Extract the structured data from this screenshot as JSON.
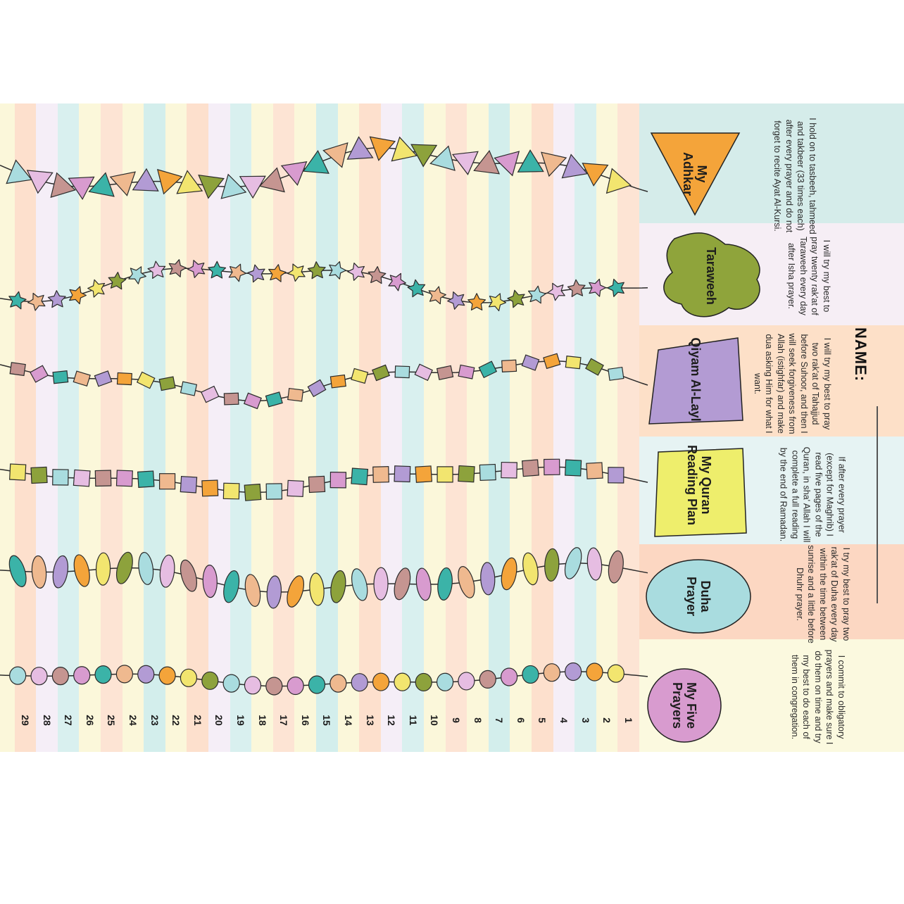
{
  "name_label": "NAME:",
  "days": [
    "1",
    "2",
    "3",
    "4",
    "5",
    "6",
    "7",
    "8",
    "9",
    "10",
    "11",
    "12",
    "13",
    "14",
    "15",
    "16",
    "17",
    "18",
    "19",
    "20",
    "21",
    "22",
    "23",
    "24",
    "25",
    "26",
    "27",
    "28",
    "29"
  ],
  "rows": [
    {
      "id": "adhkar",
      "label": "My Adhkar",
      "description": "I hold on to tasbeeh, tahmeed and takbeer (33 times each) after every prayer and do not forget to recite Ayat Al-Kursi.",
      "badge_color": "#f4a43a",
      "panel_color": "#d5ecea",
      "bead": "triangle"
    },
    {
      "id": "taraweeh",
      "label": "Taraweeh",
      "description": "I will try my best to pray twenty rak'at of Taraweeh every day after Isha prayer.",
      "badge_color": "#8fa43b",
      "panel_color": "#f6eef5",
      "bead": "star"
    },
    {
      "id": "qiyam",
      "label": "Qiyam Al-Layl",
      "description": "I will try my best to pray two rak'at of Tahajjud before Suhoor, and then I will seek forgiveness from Allah (istighfar) and make dua asking Him for what I want.",
      "badge_color": "#b39bd3",
      "panel_color": "#fde0c8",
      "bead": "diamond"
    },
    {
      "id": "quran",
      "label": "My Quran Reading Plan",
      "description": "If after every prayer (except for Maghrib) I read five pages of the Quran, in sha' Allah I will complete a full reading by the end of Ramadan.",
      "badge_color": "#eeee6c",
      "panel_color": "#e6f3f3",
      "bead": "square"
    },
    {
      "id": "duha",
      "label": "Duha Prayer",
      "description": "I try my best to pray two rak'at of Duha every day within the time between sunrise and a little before Dhuhr prayer.",
      "badge_color": "#a9dcdf",
      "panel_color": "#fcd7c2",
      "bead": "oval"
    },
    {
      "id": "five",
      "label": "My Five Prayers",
      "description": "I commit to obligatory prayers and make sure I do them on time and try my best to do each of them in congregation.",
      "badge_color": "#d89bcf",
      "panel_color": "#fbf9df",
      "bead": "circle"
    }
  ],
  "colors": {
    "stripes": [
      "#fde4d4",
      "#fbf7da",
      "#d9f0ef",
      "#f5eef7",
      "#fde0cd",
      "#fbf7da",
      "#d3eeec",
      "#fbf7da"
    ],
    "beads": [
      "#f2e56f",
      "#e6bde2",
      "#3bb3a8",
      "#f4a43a",
      "#a9dcdf",
      "#d89bcf",
      "#b29bd4",
      "#8da23c",
      "#c59591",
      "#efb98f"
    ]
  }
}
